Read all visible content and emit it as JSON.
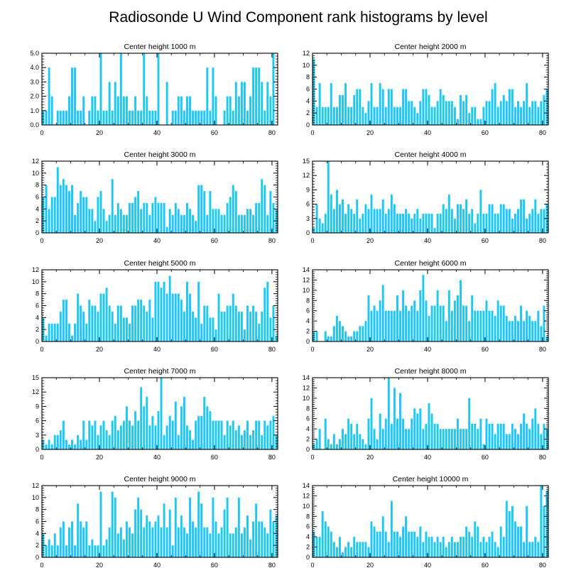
{
  "figure": {
    "title": "Radiosonde U Wind Component rank histograms by level",
    "bar_color": "#1ec8f5"
  },
  "chart_data": [
    {
      "type": "bar",
      "title": "Center height 1000 m",
      "xlim": [
        0,
        82
      ],
      "ylim": [
        0,
        5
      ],
      "xticks": [
        0,
        20,
        40,
        60,
        80
      ],
      "yticks": [
        0,
        1,
        2,
        3,
        4,
        5
      ],
      "ytick_labels": [
        "0.0",
        "1.0",
        "2.0",
        "3.0",
        "4.0",
        "5.0"
      ],
      "values": [
        1,
        1,
        4,
        2,
        0,
        1,
        1,
        1,
        1,
        2,
        4,
        4,
        1,
        1,
        2,
        0,
        1,
        2,
        2,
        1,
        5,
        1,
        1,
        3,
        1,
        3,
        2,
        5,
        2,
        2,
        1,
        1,
        2,
        1,
        1,
        5,
        2,
        1,
        1,
        1,
        5,
        0,
        0,
        3,
        0,
        1,
        1,
        2,
        2,
        1,
        2,
        2,
        1,
        1,
        1,
        1,
        1,
        4,
        1,
        4,
        2,
        0,
        0,
        1,
        2,
        2,
        1,
        3,
        2,
        3,
        3,
        1,
        2,
        4,
        4,
        4,
        3,
        1,
        3,
        2,
        5
      ]
    },
    {
      "type": "bar",
      "title": "Center height 2000 m",
      "xlim": [
        0,
        82
      ],
      "ylim": [
        0,
        12
      ],
      "xticks": [
        0,
        20,
        40,
        60,
        80
      ],
      "yticks": [
        0,
        2,
        4,
        6,
        8,
        10,
        12
      ],
      "ytick_labels": [
        "0",
        "2",
        "4",
        "6",
        "8",
        "10",
        "12"
      ],
      "values": [
        11,
        3,
        7,
        3,
        3,
        3,
        7,
        3,
        3,
        5,
        5,
        7,
        3,
        3,
        5,
        6,
        6,
        3,
        2,
        4,
        7,
        3,
        3,
        7,
        6,
        3,
        6,
        6,
        3,
        3,
        3,
        6,
        6,
        4,
        4,
        3,
        2,
        4,
        6,
        6,
        5,
        3,
        3,
        4,
        6,
        5,
        4,
        4,
        4,
        3,
        1,
        5,
        4,
        5,
        2,
        3,
        3,
        1,
        1,
        3,
        4,
        4,
        6,
        7,
        3,
        4,
        5,
        4,
        6,
        6,
        3,
        4,
        3,
        4,
        7,
        3,
        4,
        4,
        3,
        4,
        5,
        6
      ]
    },
    {
      "type": "bar",
      "title": "Center height 3000 m",
      "xlim": [
        0,
        82
      ],
      "ylim": [
        0,
        12
      ],
      "xticks": [
        0,
        20,
        40,
        60,
        80
      ],
      "yticks": [
        0,
        2,
        4,
        6,
        8,
        10,
        12
      ],
      "ytick_labels": [
        "0",
        "2",
        "4",
        "6",
        "8",
        "10",
        "12"
      ],
      "values": [
        6,
        8,
        4,
        6,
        6,
        11,
        8,
        9,
        8,
        7,
        8,
        3,
        5,
        7,
        6,
        6,
        4,
        4,
        2,
        6,
        7,
        4,
        2,
        3,
        9,
        3,
        5,
        4,
        3,
        3,
        5,
        5,
        6,
        7,
        4,
        5,
        5,
        3,
        5,
        6,
        5,
        5,
        5,
        1,
        4,
        3,
        5,
        4,
        3,
        3,
        5,
        4,
        3,
        2,
        8,
        8,
        7,
        3,
        7,
        4,
        4,
        4,
        3,
        3,
        5,
        6,
        8,
        7,
        3,
        3,
        3,
        4,
        4,
        3,
        5,
        5,
        9,
        8,
        3,
        7,
        5,
        4
      ]
    },
    {
      "type": "bar",
      "title": "Center height 4000 m",
      "xlim": [
        0,
        82
      ],
      "ylim": [
        0,
        15
      ],
      "xticks": [
        0,
        20,
        40,
        60,
        80
      ],
      "yticks": [
        0,
        3,
        6,
        9,
        12,
        15
      ],
      "ytick_labels": [
        "0",
        "3",
        "6",
        "9",
        "12",
        "15"
      ],
      "values": [
        1,
        6,
        3,
        2,
        4,
        15,
        8,
        5,
        9,
        6,
        7,
        4,
        6,
        5,
        4,
        7,
        3,
        4,
        6,
        5,
        8,
        5,
        5,
        5,
        7,
        4,
        5,
        8,
        6,
        4,
        4,
        4,
        5,
        4,
        3,
        4,
        5,
        3,
        4,
        4,
        4,
        4,
        1,
        4,
        4,
        6,
        5,
        8,
        5,
        3,
        6,
        6,
        5,
        7,
        4,
        5,
        2,
        4,
        9,
        4,
        4,
        6,
        6,
        4,
        4,
        6,
        6,
        5,
        5,
        3,
        4,
        5,
        7,
        7,
        3,
        4,
        5,
        7,
        4,
        5,
        5,
        6
      ]
    },
    {
      "type": "bar",
      "title": "Center height 5000 m",
      "xlim": [
        0,
        82
      ],
      "ylim": [
        0,
        12
      ],
      "xticks": [
        0,
        20,
        40,
        60,
        80
      ],
      "yticks": [
        0,
        2,
        4,
        6,
        8,
        10,
        12
      ],
      "ytick_labels": [
        "0",
        "2",
        "4",
        "6",
        "8",
        "10",
        "12"
      ],
      "values": [
        4,
        1,
        3,
        3,
        3,
        3,
        5,
        7,
        7,
        3,
        1,
        3,
        8,
        6,
        5,
        3,
        7,
        6,
        6,
        5,
        8,
        8,
        9,
        6,
        5,
        3,
        6,
        6,
        4,
        4,
        3,
        6,
        6,
        7,
        7,
        6,
        5,
        7,
        4,
        10,
        10,
        9,
        10,
        8,
        11,
        8,
        8,
        8,
        7,
        5,
        10,
        8,
        5,
        4,
        10,
        3,
        6,
        6,
        4,
        4,
        2,
        8,
        5,
        5,
        6,
        6,
        8,
        6,
        5,
        5,
        2,
        6,
        5,
        6,
        5,
        3,
        5,
        9,
        10,
        4,
        6,
        1
      ]
    },
    {
      "type": "bar",
      "title": "Center height 6000 m",
      "xlim": [
        0,
        82
      ],
      "ylim": [
        0,
        14
      ],
      "xticks": [
        0,
        20,
        40,
        60,
        80
      ],
      "yticks": [
        0,
        2,
        4,
        6,
        8,
        10,
        12,
        14
      ],
      "ytick_labels": [
        "0",
        "2",
        "4",
        "6",
        "8",
        "10",
        "12",
        "14"
      ],
      "values": [
        2,
        2,
        0,
        0,
        2,
        1,
        1,
        3,
        5,
        4,
        3,
        2,
        1,
        1,
        2,
        2,
        3,
        3,
        4,
        9,
        6,
        7,
        6,
        8,
        11,
        6,
        6,
        6,
        6,
        9,
        6,
        10,
        7,
        6,
        7,
        8,
        6,
        10,
        13,
        8,
        5,
        7,
        7,
        10,
        7,
        7,
        4,
        10,
        6,
        8,
        9,
        12,
        7,
        7,
        4,
        9,
        6,
        6,
        6,
        6,
        8,
        6,
        6,
        5,
        8,
        7,
        7,
        5,
        4,
        4,
        5,
        4,
        7,
        4,
        6,
        5,
        4,
        4,
        6,
        3,
        7,
        1
      ]
    },
    {
      "type": "bar",
      "title": "Center height 7000 m",
      "xlim": [
        0,
        82
      ],
      "ylim": [
        0,
        15
      ],
      "xticks": [
        0,
        20,
        40,
        60,
        80
      ],
      "yticks": [
        0,
        3,
        6,
        9,
        12,
        15
      ],
      "ytick_labels": [
        "0",
        "3",
        "6",
        "9",
        "12",
        "15"
      ],
      "values": [
        2,
        1,
        2,
        1,
        3,
        3,
        4,
        6,
        2,
        1,
        2,
        1,
        3,
        2,
        6,
        2,
        6,
        5,
        6,
        3,
        5,
        6,
        4,
        3,
        6,
        7,
        4,
        5,
        6,
        9,
        6,
        5,
        8,
        6,
        13,
        9,
        11,
        5,
        7,
        5,
        8,
        15,
        3,
        5,
        7,
        6,
        10,
        3,
        9,
        11,
        5,
        4,
        2,
        6,
        7,
        7,
        11,
        9,
        8,
        6,
        6,
        6,
        6,
        3,
        6,
        5,
        6,
        4,
        5,
        3,
        4,
        6,
        3,
        4,
        6,
        6,
        3,
        6,
        5,
        6,
        7,
        3
      ]
    },
    {
      "type": "bar",
      "title": "Center height 8000 m",
      "xlim": [
        0,
        82
      ],
      "ylim": [
        0,
        14
      ],
      "xticks": [
        0,
        20,
        40,
        60,
        80
      ],
      "yticks": [
        0,
        2,
        4,
        6,
        8,
        10,
        12,
        14
      ],
      "ytick_labels": [
        "0",
        "2",
        "4",
        "6",
        "8",
        "10",
        "12",
        "14"
      ],
      "values": [
        1,
        2,
        4,
        0,
        6,
        2,
        1,
        3,
        1,
        2,
        4,
        3,
        6,
        5,
        3,
        5,
        3,
        2,
        1,
        6,
        10,
        4,
        2,
        7,
        4,
        6,
        14,
        5,
        12,
        6,
        11,
        6,
        4,
        4,
        6,
        8,
        7,
        8,
        4,
        5,
        9,
        7,
        5,
        5,
        4,
        4,
        4,
        4,
        4,
        4,
        6,
        4,
        4,
        4,
        10,
        5,
        5,
        4,
        6,
        1,
        6,
        5,
        5,
        3,
        5,
        5,
        5,
        3,
        3,
        5,
        4,
        3,
        5,
        7,
        5,
        4,
        6,
        8,
        5,
        3,
        5,
        4
      ]
    },
    {
      "type": "bar",
      "title": "Center height 9000 m",
      "xlim": [
        0,
        82
      ],
      "ylim": [
        0,
        12
      ],
      "xticks": [
        0,
        20,
        40,
        60,
        80
      ],
      "yticks": [
        0,
        2,
        4,
        6,
        8,
        10,
        12
      ],
      "ytick_labels": [
        "0",
        "2",
        "4",
        "6",
        "8",
        "10",
        "12"
      ],
      "values": [
        4,
        2,
        3,
        2,
        4,
        2,
        5,
        6,
        2,
        5,
        6,
        2,
        9,
        6,
        5,
        6,
        2,
        3,
        2,
        2,
        11,
        2,
        3,
        5,
        11,
        10,
        4,
        5,
        3,
        6,
        5,
        4,
        8,
        10,
        8,
        5,
        7,
        6,
        5,
        6,
        7,
        5,
        9,
        5,
        8,
        2,
        10,
        5,
        7,
        5,
        4,
        10,
        6,
        5,
        11,
        9,
        5,
        5,
        4,
        10,
        6,
        4,
        5,
        8,
        10,
        4,
        4,
        5,
        10,
        4,
        5,
        7,
        3,
        6,
        9,
        6,
        6,
        5,
        4,
        8,
        6,
        7
      ]
    },
    {
      "type": "bar",
      "title": "Center height 10000 m",
      "xlim": [
        0,
        82
      ],
      "ylim": [
        0,
        14
      ],
      "xticks": [
        0,
        20,
        40,
        60,
        80
      ],
      "yticks": [
        0,
        2,
        4,
        6,
        8,
        10,
        12,
        14
      ],
      "ytick_labels": [
        "0",
        "2",
        "4",
        "6",
        "8",
        "10",
        "12",
        "14"
      ],
      "values": [
        5,
        4,
        4,
        9,
        7,
        6,
        5,
        3,
        2,
        4,
        1,
        2,
        3,
        2,
        4,
        3,
        3,
        3,
        3,
        2,
        7,
        6,
        5,
        5,
        8,
        5,
        3,
        11,
        5,
        5,
        4,
        6,
        8,
        5,
        5,
        5,
        4,
        6,
        3,
        5,
        4,
        4,
        3,
        4,
        3,
        4,
        2,
        3,
        4,
        3,
        3,
        4,
        4,
        6,
        5,
        4,
        7,
        6,
        3,
        4,
        3,
        4,
        5,
        3,
        2,
        6,
        4,
        11,
        9,
        10,
        7,
        6,
        6,
        3,
        10,
        3,
        3,
        4,
        3,
        14,
        10,
        13
      ]
    }
  ]
}
